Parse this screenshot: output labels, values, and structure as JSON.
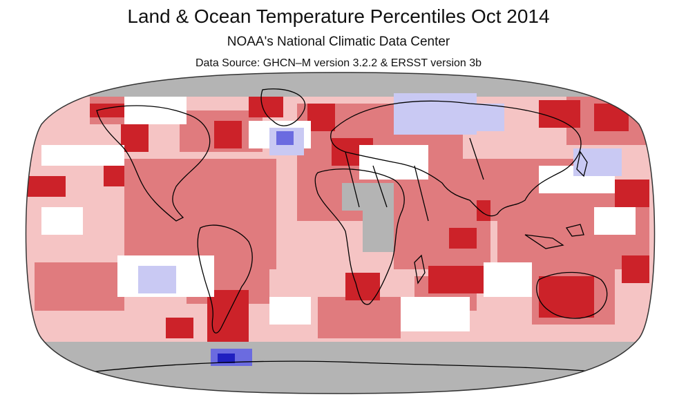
{
  "header": {
    "title": "Land & Ocean Temperature Percentiles Oct 2014",
    "subtitle": "NOAA's National Climatic Data Center",
    "source": "Data Source: GHCN–M version 3.2.2 & ERSST version 3b"
  },
  "colors": {
    "record_warmest": "#cc2229",
    "much_warmer": "#e07b7e",
    "warmer": "#f5c4c4",
    "near_average": "#ffffff",
    "cooler": "#c9c9f3",
    "much_cooler": "#6b6be0",
    "record_coldest": "#2020c0",
    "no_data": "#b4b4b4",
    "coastline": "#000000"
  },
  "map": {
    "projection": "robinson",
    "background": "ocean-and-land percentile grid"
  }
}
